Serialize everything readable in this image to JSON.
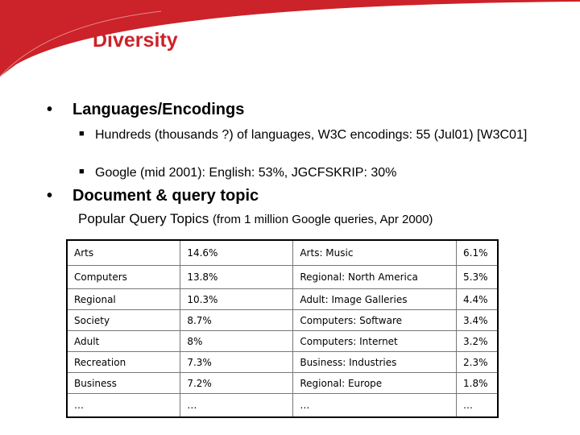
{
  "slide": {
    "title": "Diversity",
    "accent_color": "#cc2229",
    "bullets": [
      {
        "text": "Languages/Encodings",
        "subitems": [
          "Hundreds (thousands ?) of languages, W3C encodings: 55 (Jul01) [W3C01]",
          "Google (mid 2001): English: 53%, JGCFSKRIP: 30%"
        ]
      },
      {
        "text": "Document & query topic"
      }
    ],
    "caption_main": "Popular Query Topics ",
    "caption_detail": "(from 1 million Google queries, Apr 2000)",
    "table": {
      "rows": [
        [
          "Arts",
          "14.6%",
          "Arts: Music",
          "6.1%"
        ],
        [
          "Computers",
          "13.8%",
          "Regional: North America",
          "5.3%"
        ],
        [
          "Regional",
          "10.3%",
          "Adult: Image Galleries",
          "4.4%"
        ],
        [
          "Society",
          "8.7%",
          "Computers: Software",
          "3.4%"
        ],
        [
          "Adult",
          "8%",
          "Computers: Internet",
          "3.2%"
        ],
        [
          "Recreation",
          "7.3%",
          "Business: Industries",
          "2.3%"
        ],
        [
          "Business",
          "7.2%",
          "Regional: Europe",
          "1.8%"
        ],
        [
          "…",
          "…",
          "…",
          "…"
        ]
      ]
    }
  }
}
